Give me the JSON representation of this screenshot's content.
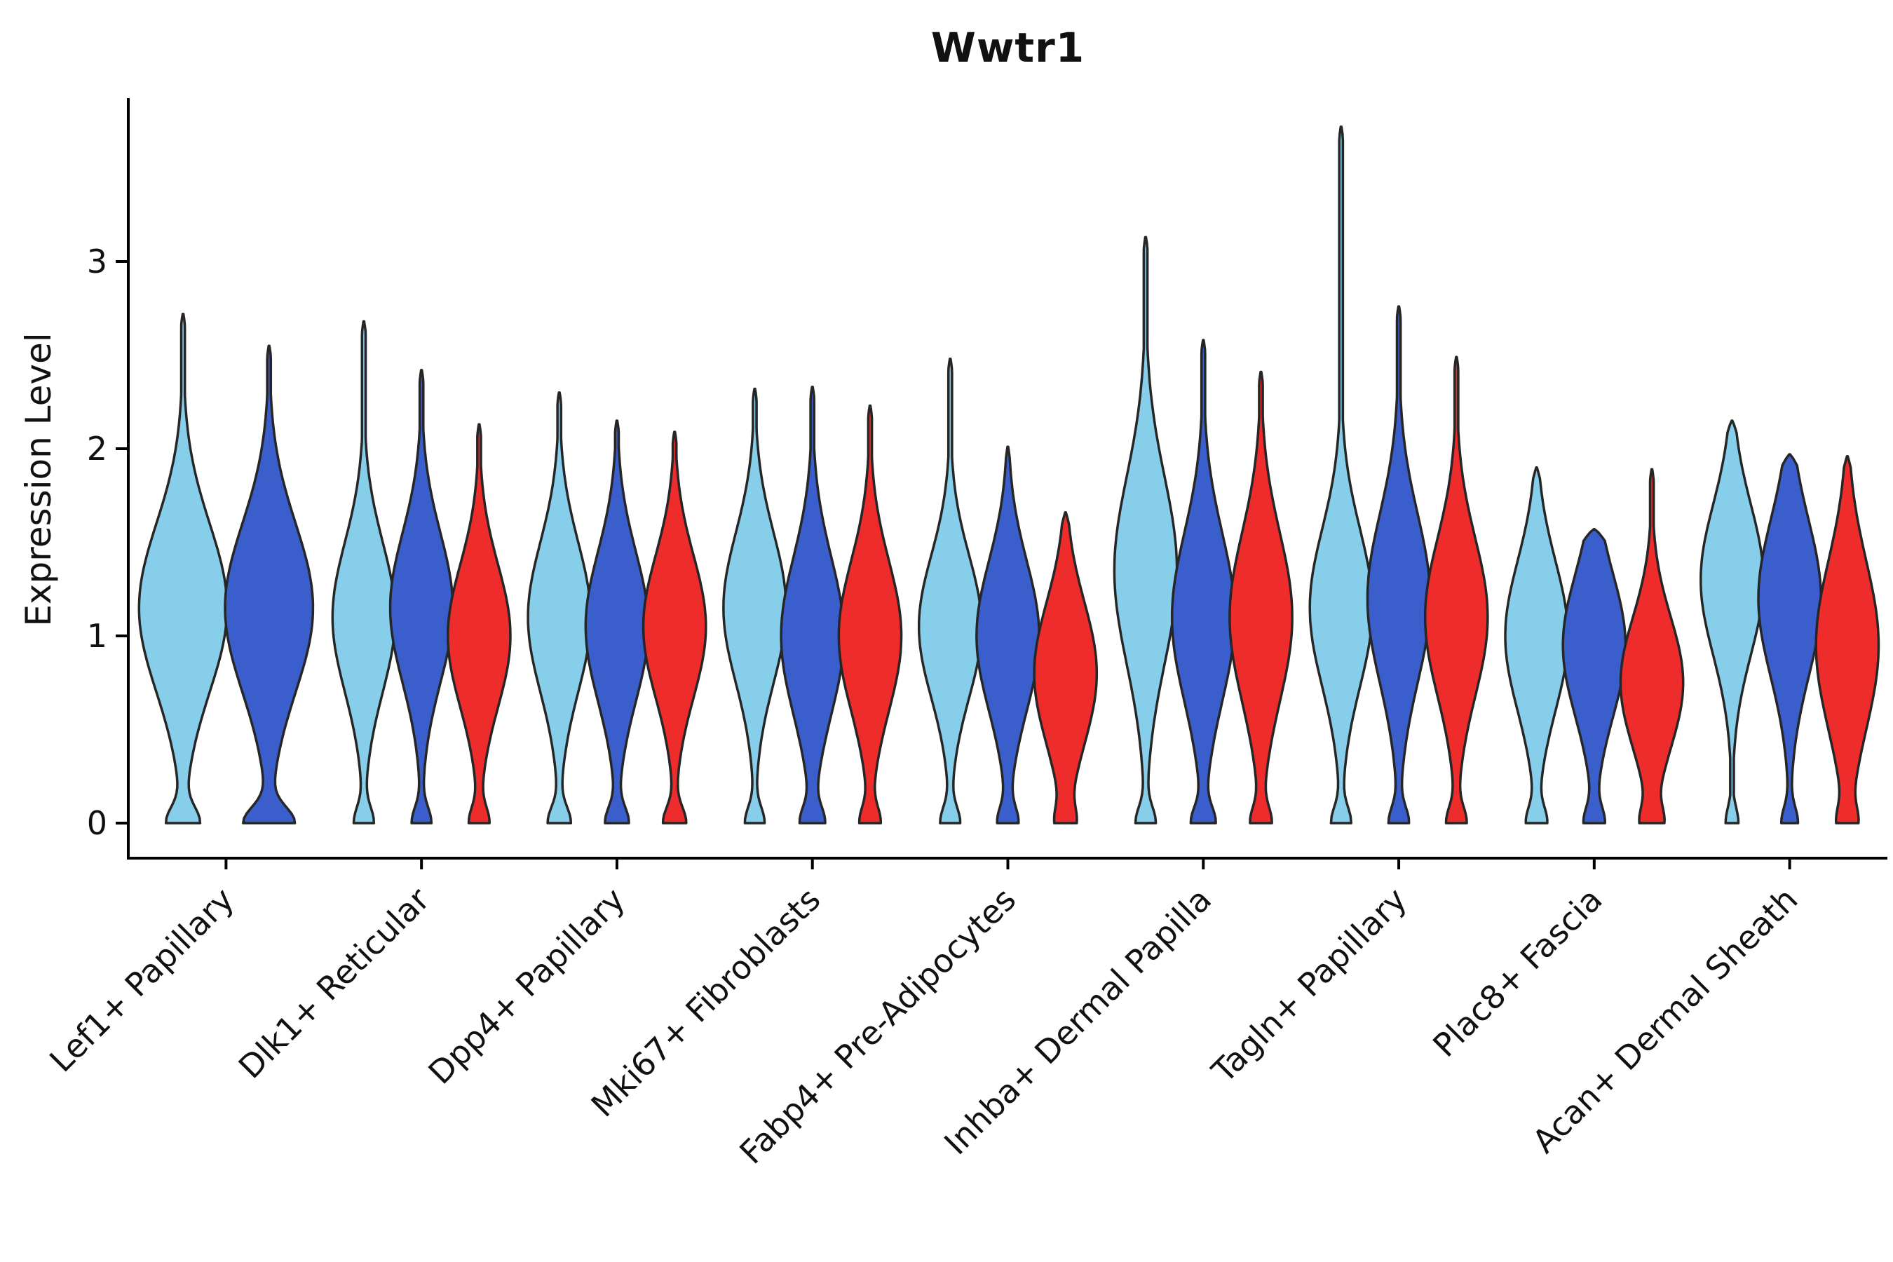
{
  "title": "Wwtr1",
  "chart_data": {
    "type": "violin",
    "title": "Wwtr1",
    "xlabel": "",
    "ylabel": "Expression Level",
    "yticks": [
      0,
      1,
      2,
      3
    ],
    "ylim": [
      0,
      3.9
    ],
    "grid": false,
    "legend": "none",
    "series_colors": [
      "#87CEEB",
      "#3A5FCD",
      "#EE2C2C"
    ],
    "stroke_color": "#262626",
    "categories": [
      "Lef1+ Papillary",
      "Dlk1+ Reticular",
      "Dpp4+ Papillary",
      "Mki67+ Fibroblasts",
      "Fabp4+ Pre-Adipocytes",
      "Inhba+ Dermal Papilla",
      "Tagln+ Papillary",
      "Plac8+ Fascia",
      "Acan+ Dermal Sheath"
    ],
    "groups": [
      {
        "category": "Lef1+ Papillary",
        "violins": [
          {
            "series": 0,
            "max": 2.72,
            "mode": 1.15,
            "spread": 0.45,
            "foot": 0.35
          },
          {
            "series": 1,
            "max": 2.55,
            "mode": 1.15,
            "spread": 0.45,
            "foot": 0.55
          }
        ]
      },
      {
        "category": "Dlk1+ Reticular",
        "violins": [
          {
            "series": 0,
            "max": 2.68,
            "mode": 1.1,
            "spread": 0.4,
            "foot": 0.3
          },
          {
            "series": 1,
            "max": 2.42,
            "mode": 1.15,
            "spread": 0.4,
            "foot": 0.3
          },
          {
            "series": 2,
            "max": 2.13,
            "mode": 1.0,
            "spread": 0.38,
            "foot": 0.3
          }
        ]
      },
      {
        "category": "Dpp4+ Papillary",
        "violins": [
          {
            "series": 0,
            "max": 2.3,
            "mode": 1.1,
            "spread": 0.4,
            "foot": 0.35
          },
          {
            "series": 1,
            "max": 2.15,
            "mode": 1.05,
            "spread": 0.4,
            "foot": 0.35
          },
          {
            "series": 2,
            "max": 2.09,
            "mode": 1.05,
            "spread": 0.38,
            "foot": 0.35
          }
        ]
      },
      {
        "category": "Mki67+ Fibroblasts",
        "violins": [
          {
            "series": 0,
            "max": 2.32,
            "mode": 1.15,
            "spread": 0.4,
            "foot": 0.3
          },
          {
            "series": 1,
            "max": 2.33,
            "mode": 1.0,
            "spread": 0.42,
            "foot": 0.35
          },
          {
            "series": 2,
            "max": 2.23,
            "mode": 1.0,
            "spread": 0.4,
            "foot": 0.3
          }
        ]
      },
      {
        "category": "Fabp4+ Pre-Adipocytes",
        "violins": [
          {
            "series": 0,
            "max": 2.48,
            "mode": 1.05,
            "spread": 0.38,
            "foot": 0.3
          },
          {
            "series": 1,
            "max": 2.01,
            "mode": 1.0,
            "spread": 0.4,
            "foot": 0.3
          },
          {
            "series": 2,
            "max": 1.66,
            "mode": 0.8,
            "spread": 0.38,
            "foot": 0.25
          }
        ]
      },
      {
        "category": "Inhba+ Dermal Papilla",
        "violins": [
          {
            "series": 0,
            "max": 3.13,
            "mode": 1.35,
            "spread": 0.5,
            "foot": 0.3
          },
          {
            "series": 1,
            "max": 2.58,
            "mode": 1.1,
            "spread": 0.45,
            "foot": 0.35
          },
          {
            "series": 2,
            "max": 2.41,
            "mode": 1.1,
            "spread": 0.45,
            "foot": 0.3
          }
        ]
      },
      {
        "category": "Tagln+ Papillary",
        "violins": [
          {
            "series": 0,
            "max": 3.72,
            "mode": 1.15,
            "spread": 0.42,
            "foot": 0.3
          },
          {
            "series": 1,
            "max": 2.76,
            "mode": 1.2,
            "spread": 0.45,
            "foot": 0.3
          },
          {
            "series": 2,
            "max": 2.49,
            "mode": 1.1,
            "spread": 0.42,
            "foot": 0.3
          }
        ]
      },
      {
        "category": "Plac8+ Fascia",
        "violins": [
          {
            "series": 0,
            "max": 1.9,
            "mode": 1.0,
            "spread": 0.4,
            "foot": 0.3
          },
          {
            "series": 1,
            "max": 1.57,
            "mode": 0.95,
            "spread": 0.38,
            "foot": 0.3
          },
          {
            "series": 2,
            "max": 1.89,
            "mode": 0.75,
            "spread": 0.35,
            "foot": 0.3
          }
        ]
      },
      {
        "category": "Acan+ Dermal Sheath",
        "violins": [
          {
            "series": 0,
            "max": 2.15,
            "mode": 1.3,
            "spread": 0.4,
            "foot": 0.2
          },
          {
            "series": 1,
            "max": 1.97,
            "mode": 1.2,
            "spread": 0.42,
            "foot": 0.25
          },
          {
            "series": 2,
            "max": 1.96,
            "mode": 0.95,
            "spread": 0.45,
            "foot": 0.25
          }
        ]
      }
    ]
  }
}
